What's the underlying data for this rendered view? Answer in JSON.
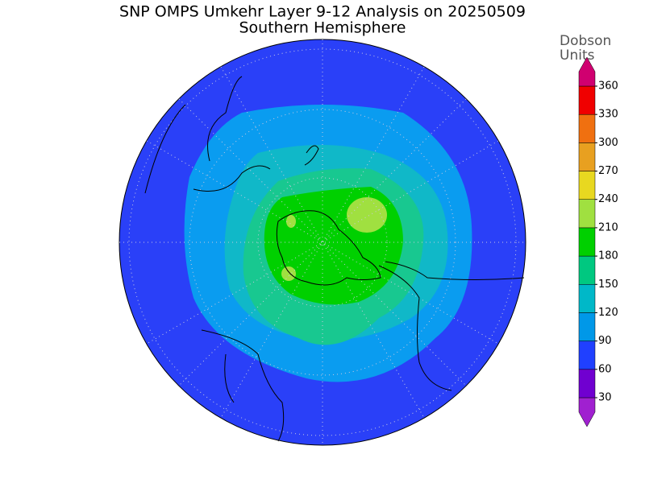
{
  "title": "SNP OMPS Umkehr Layer 9-12 Analysis on 20250509",
  "subtitle": "Southern Hemisphere",
  "colorbar": {
    "label": [
      "Dobson",
      "Units"
    ],
    "ticks": [
      30,
      60,
      90,
      120,
      150,
      180,
      210,
      240,
      270,
      300,
      330,
      360
    ],
    "colors": [
      "#a020d0",
      "#7000d0",
      "#2040ff",
      "#0098e8",
      "#00b8c8",
      "#00c880",
      "#00d000",
      "#a0e040",
      "#e8d820",
      "#e8a020",
      "#f07010",
      "#f00000",
      "#d00070"
    ]
  }
}
